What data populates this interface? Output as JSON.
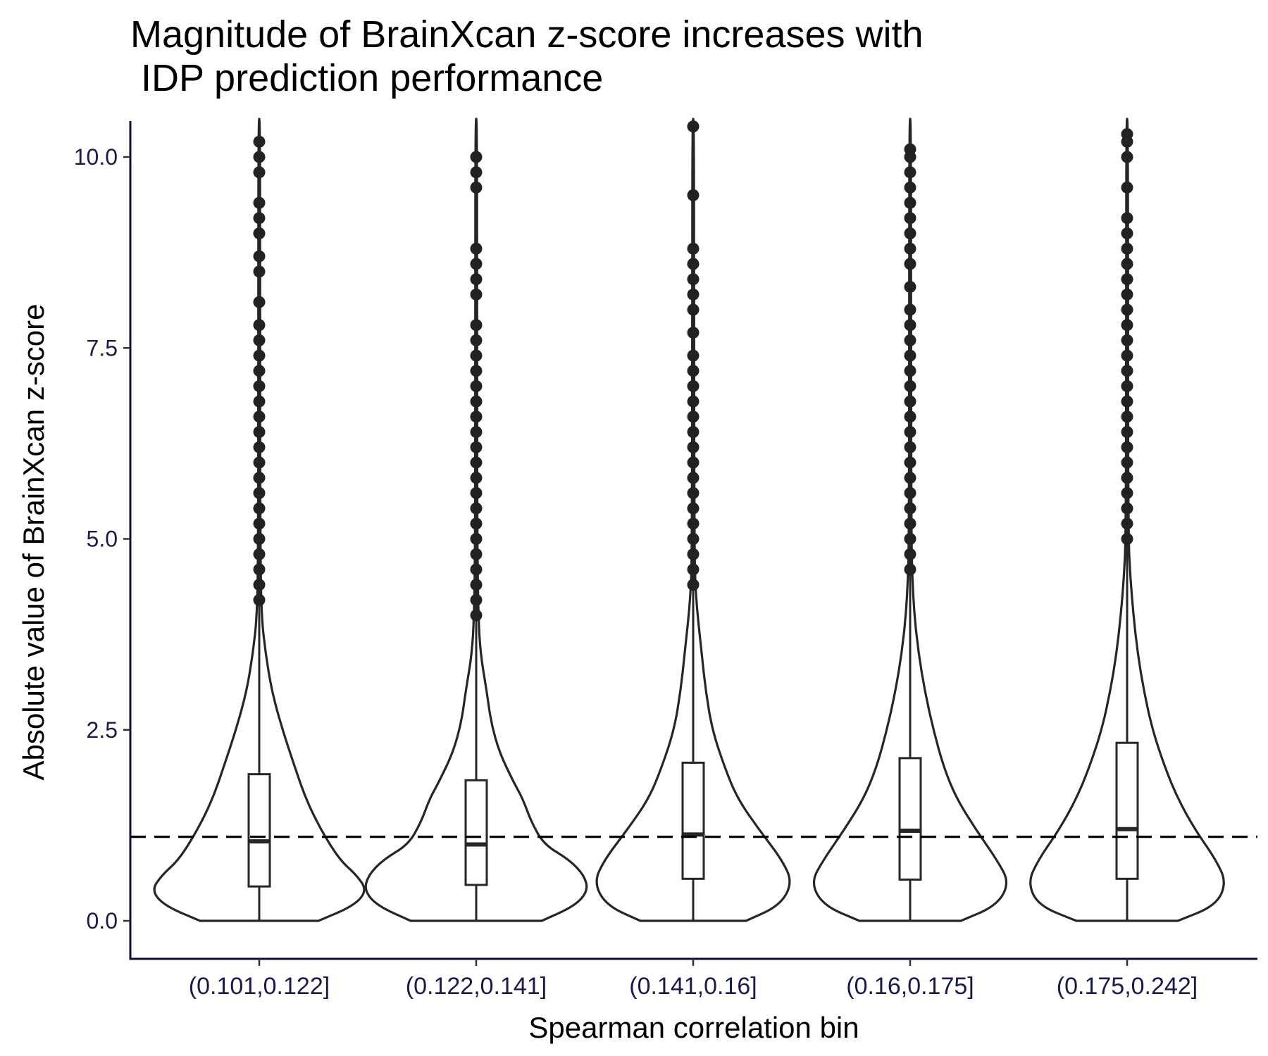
{
  "chart_data": {
    "type": "violin",
    "title": "Magnitude of BrainXcan z-score increases with\n IDP prediction performance",
    "xlabel": "Spearman correlation bin",
    "ylabel": "Absolute value of BrainXcan z-score",
    "categories": [
      "(0.101,0.122]",
      "(0.122,0.141]",
      "(0.141,0.16]",
      "(0.16,0.175]",
      "(0.175,0.242]"
    ],
    "ylim": [
      -0.5,
      10.5
    ],
    "yticks": [
      0.0,
      2.5,
      5.0,
      7.5,
      10.0
    ],
    "ytick_labels": [
      "0.0",
      "2.5",
      "5.0",
      "7.5",
      "10.0"
    ],
    "reference_line": {
      "y": 1.1,
      "style": "dashed"
    },
    "boxes": [
      {
        "q1": 0.45,
        "median": 1.04,
        "q3": 1.92,
        "whisker_low": 0.0,
        "whisker_high": 4.1
      },
      {
        "q1": 0.47,
        "median": 1.0,
        "q3": 1.84,
        "whisker_low": 0.0,
        "whisker_high": 3.9
      },
      {
        "q1": 0.55,
        "median": 1.13,
        "q3": 2.07,
        "whisker_low": 0.0,
        "whisker_high": 4.35
      },
      {
        "q1": 0.54,
        "median": 1.18,
        "q3": 2.13,
        "whisker_low": 0.0,
        "whisker_high": 4.5
      },
      {
        "q1": 0.55,
        "median": 1.2,
        "q3": 2.33,
        "whisker_low": 0.0,
        "whisker_high": 5.0
      }
    ],
    "violins": [
      {
        "profile": [
          [
            0.0,
            0.28
          ],
          [
            0.2,
            0.45
          ],
          [
            0.4,
            0.51
          ],
          [
            0.6,
            0.46
          ],
          [
            0.8,
            0.38
          ],
          [
            1.2,
            0.29
          ],
          [
            1.6,
            0.22
          ],
          [
            2.0,
            0.17
          ],
          [
            2.5,
            0.11
          ],
          [
            3.0,
            0.06
          ],
          [
            3.5,
            0.03
          ],
          [
            4.0,
            0.01
          ],
          [
            5.0,
            0.005
          ],
          [
            7.5,
            0.004
          ],
          [
            10.5,
            0.004
          ]
        ]
      },
      {
        "profile": [
          [
            0.0,
            0.31
          ],
          [
            0.2,
            0.47
          ],
          [
            0.4,
            0.53
          ],
          [
            0.6,
            0.51
          ],
          [
            0.8,
            0.44
          ],
          [
            1.0,
            0.32
          ],
          [
            1.3,
            0.26
          ],
          [
            1.6,
            0.22
          ],
          [
            1.8,
            0.18
          ],
          [
            2.2,
            0.11
          ],
          [
            2.6,
            0.07
          ],
          [
            3.0,
            0.05
          ],
          [
            3.5,
            0.02
          ],
          [
            4.0,
            0.01
          ],
          [
            5.0,
            0.005
          ],
          [
            7.5,
            0.004
          ],
          [
            10.5,
            0.004
          ]
        ]
      },
      {
        "profile": [
          [
            0.0,
            0.25
          ],
          [
            0.2,
            0.41
          ],
          [
            0.5,
            0.47
          ],
          [
            0.8,
            0.42
          ],
          [
            1.2,
            0.31
          ],
          [
            1.6,
            0.21
          ],
          [
            2.0,
            0.15
          ],
          [
            2.5,
            0.09
          ],
          [
            3.0,
            0.06
          ],
          [
            3.5,
            0.04
          ],
          [
            4.3,
            0.01
          ],
          [
            5.0,
            0.006
          ],
          [
            7.5,
            0.004
          ],
          [
            10.5,
            0.004
          ]
        ]
      },
      {
        "profile": [
          [
            0.0,
            0.24
          ],
          [
            0.2,
            0.41
          ],
          [
            0.5,
            0.47
          ],
          [
            0.8,
            0.41
          ],
          [
            1.2,
            0.31
          ],
          [
            1.6,
            0.22
          ],
          [
            2.0,
            0.16
          ],
          [
            2.5,
            0.11
          ],
          [
            3.0,
            0.07
          ],
          [
            3.5,
            0.04
          ],
          [
            4.0,
            0.02
          ],
          [
            4.5,
            0.01
          ],
          [
            5.0,
            0.006
          ],
          [
            7.5,
            0.004
          ],
          [
            10.5,
            0.004
          ]
        ]
      },
      {
        "profile": [
          [
            0.0,
            0.24
          ],
          [
            0.2,
            0.42
          ],
          [
            0.5,
            0.47
          ],
          [
            0.8,
            0.42
          ],
          [
            1.2,
            0.32
          ],
          [
            1.6,
            0.24
          ],
          [
            2.0,
            0.18
          ],
          [
            2.5,
            0.12
          ],
          [
            3.0,
            0.08
          ],
          [
            3.5,
            0.05
          ],
          [
            4.0,
            0.03
          ],
          [
            4.5,
            0.015
          ],
          [
            5.0,
            0.006
          ],
          [
            7.5,
            0.004
          ],
          [
            10.5,
            0.004
          ]
        ]
      }
    ],
    "outliers": [
      [
        4.2,
        4.4,
        4.6,
        4.8,
        5.0,
        5.2,
        5.4,
        5.6,
        5.8,
        6.0,
        6.2,
        6.4,
        6.6,
        6.8,
        7.0,
        7.2,
        7.4,
        7.6,
        7.8,
        8.1,
        8.5,
        8.7,
        9.0,
        9.2,
        9.4,
        9.8,
        10.0,
        10.2,
        10.5
      ],
      [
        4.0,
        4.2,
        4.4,
        4.6,
        4.8,
        5.0,
        5.2,
        5.4,
        5.6,
        5.8,
        6.0,
        6.2,
        6.4,
        6.6,
        6.8,
        7.0,
        7.2,
        7.4,
        7.6,
        7.8,
        8.2,
        8.4,
        8.6,
        8.8,
        9.6,
        9.8,
        10.0
      ],
      [
        4.4,
        4.6,
        4.8,
        5.0,
        5.2,
        5.4,
        5.6,
        5.8,
        6.0,
        6.2,
        6.4,
        6.6,
        6.8,
        7.0,
        7.2,
        7.4,
        7.7,
        8.0,
        8.2,
        8.4,
        8.6,
        8.8,
        9.5,
        10.4,
        10.5
      ],
      [
        4.6,
        4.8,
        5.0,
        5.2,
        5.4,
        5.6,
        5.8,
        6.0,
        6.2,
        6.4,
        6.6,
        6.8,
        7.0,
        7.2,
        7.4,
        7.6,
        7.8,
        8.0,
        8.3,
        8.6,
        8.8,
        9.0,
        9.2,
        9.4,
        9.6,
        9.8,
        10.0,
        10.1
      ],
      [
        5.0,
        5.2,
        5.4,
        5.6,
        5.8,
        6.0,
        6.2,
        6.4,
        6.6,
        6.8,
        7.0,
        7.2,
        7.4,
        7.6,
        7.8,
        8.0,
        8.2,
        8.4,
        8.6,
        8.8,
        9.0,
        9.2,
        9.6,
        10.0,
        10.2,
        10.3,
        10.5
      ]
    ]
  }
}
